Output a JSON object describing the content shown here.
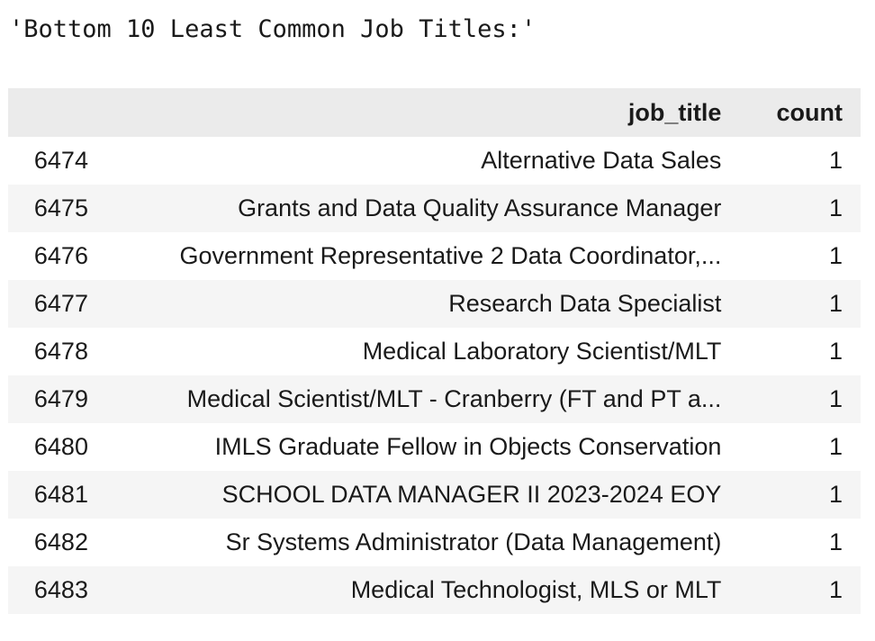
{
  "output": {
    "text": "'Bottom 10 Least Common Job Titles:'"
  },
  "table": {
    "columns": {
      "index": "",
      "job_title": "job_title",
      "count": "count"
    },
    "rows": [
      {
        "index": "6474",
        "job_title": "Alternative Data Sales",
        "count": "1"
      },
      {
        "index": "6475",
        "job_title": "Grants and Data Quality Assurance Manager",
        "count": "1"
      },
      {
        "index": "6476",
        "job_title": "Government Representative 2 Data Coordinator,...",
        "count": "1"
      },
      {
        "index": "6477",
        "job_title": "Research Data Specialist",
        "count": "1"
      },
      {
        "index": "6478",
        "job_title": "Medical Laboratory Scientist/MLT",
        "count": "1"
      },
      {
        "index": "6479",
        "job_title": "Medical Scientist/MLT - Cranberry (FT and PT a...",
        "count": "1"
      },
      {
        "index": "6480",
        "job_title": "IMLS Graduate Fellow in Objects Conservation",
        "count": "1"
      },
      {
        "index": "6481",
        "job_title": "SCHOOL DATA MANAGER II 2023-2024 EOY",
        "count": "1"
      },
      {
        "index": "6482",
        "job_title": "Sr Systems Administrator (Data Management)",
        "count": "1"
      },
      {
        "index": "6483",
        "job_title": "Medical Technologist, MLS or MLT",
        "count": "1"
      }
    ]
  }
}
